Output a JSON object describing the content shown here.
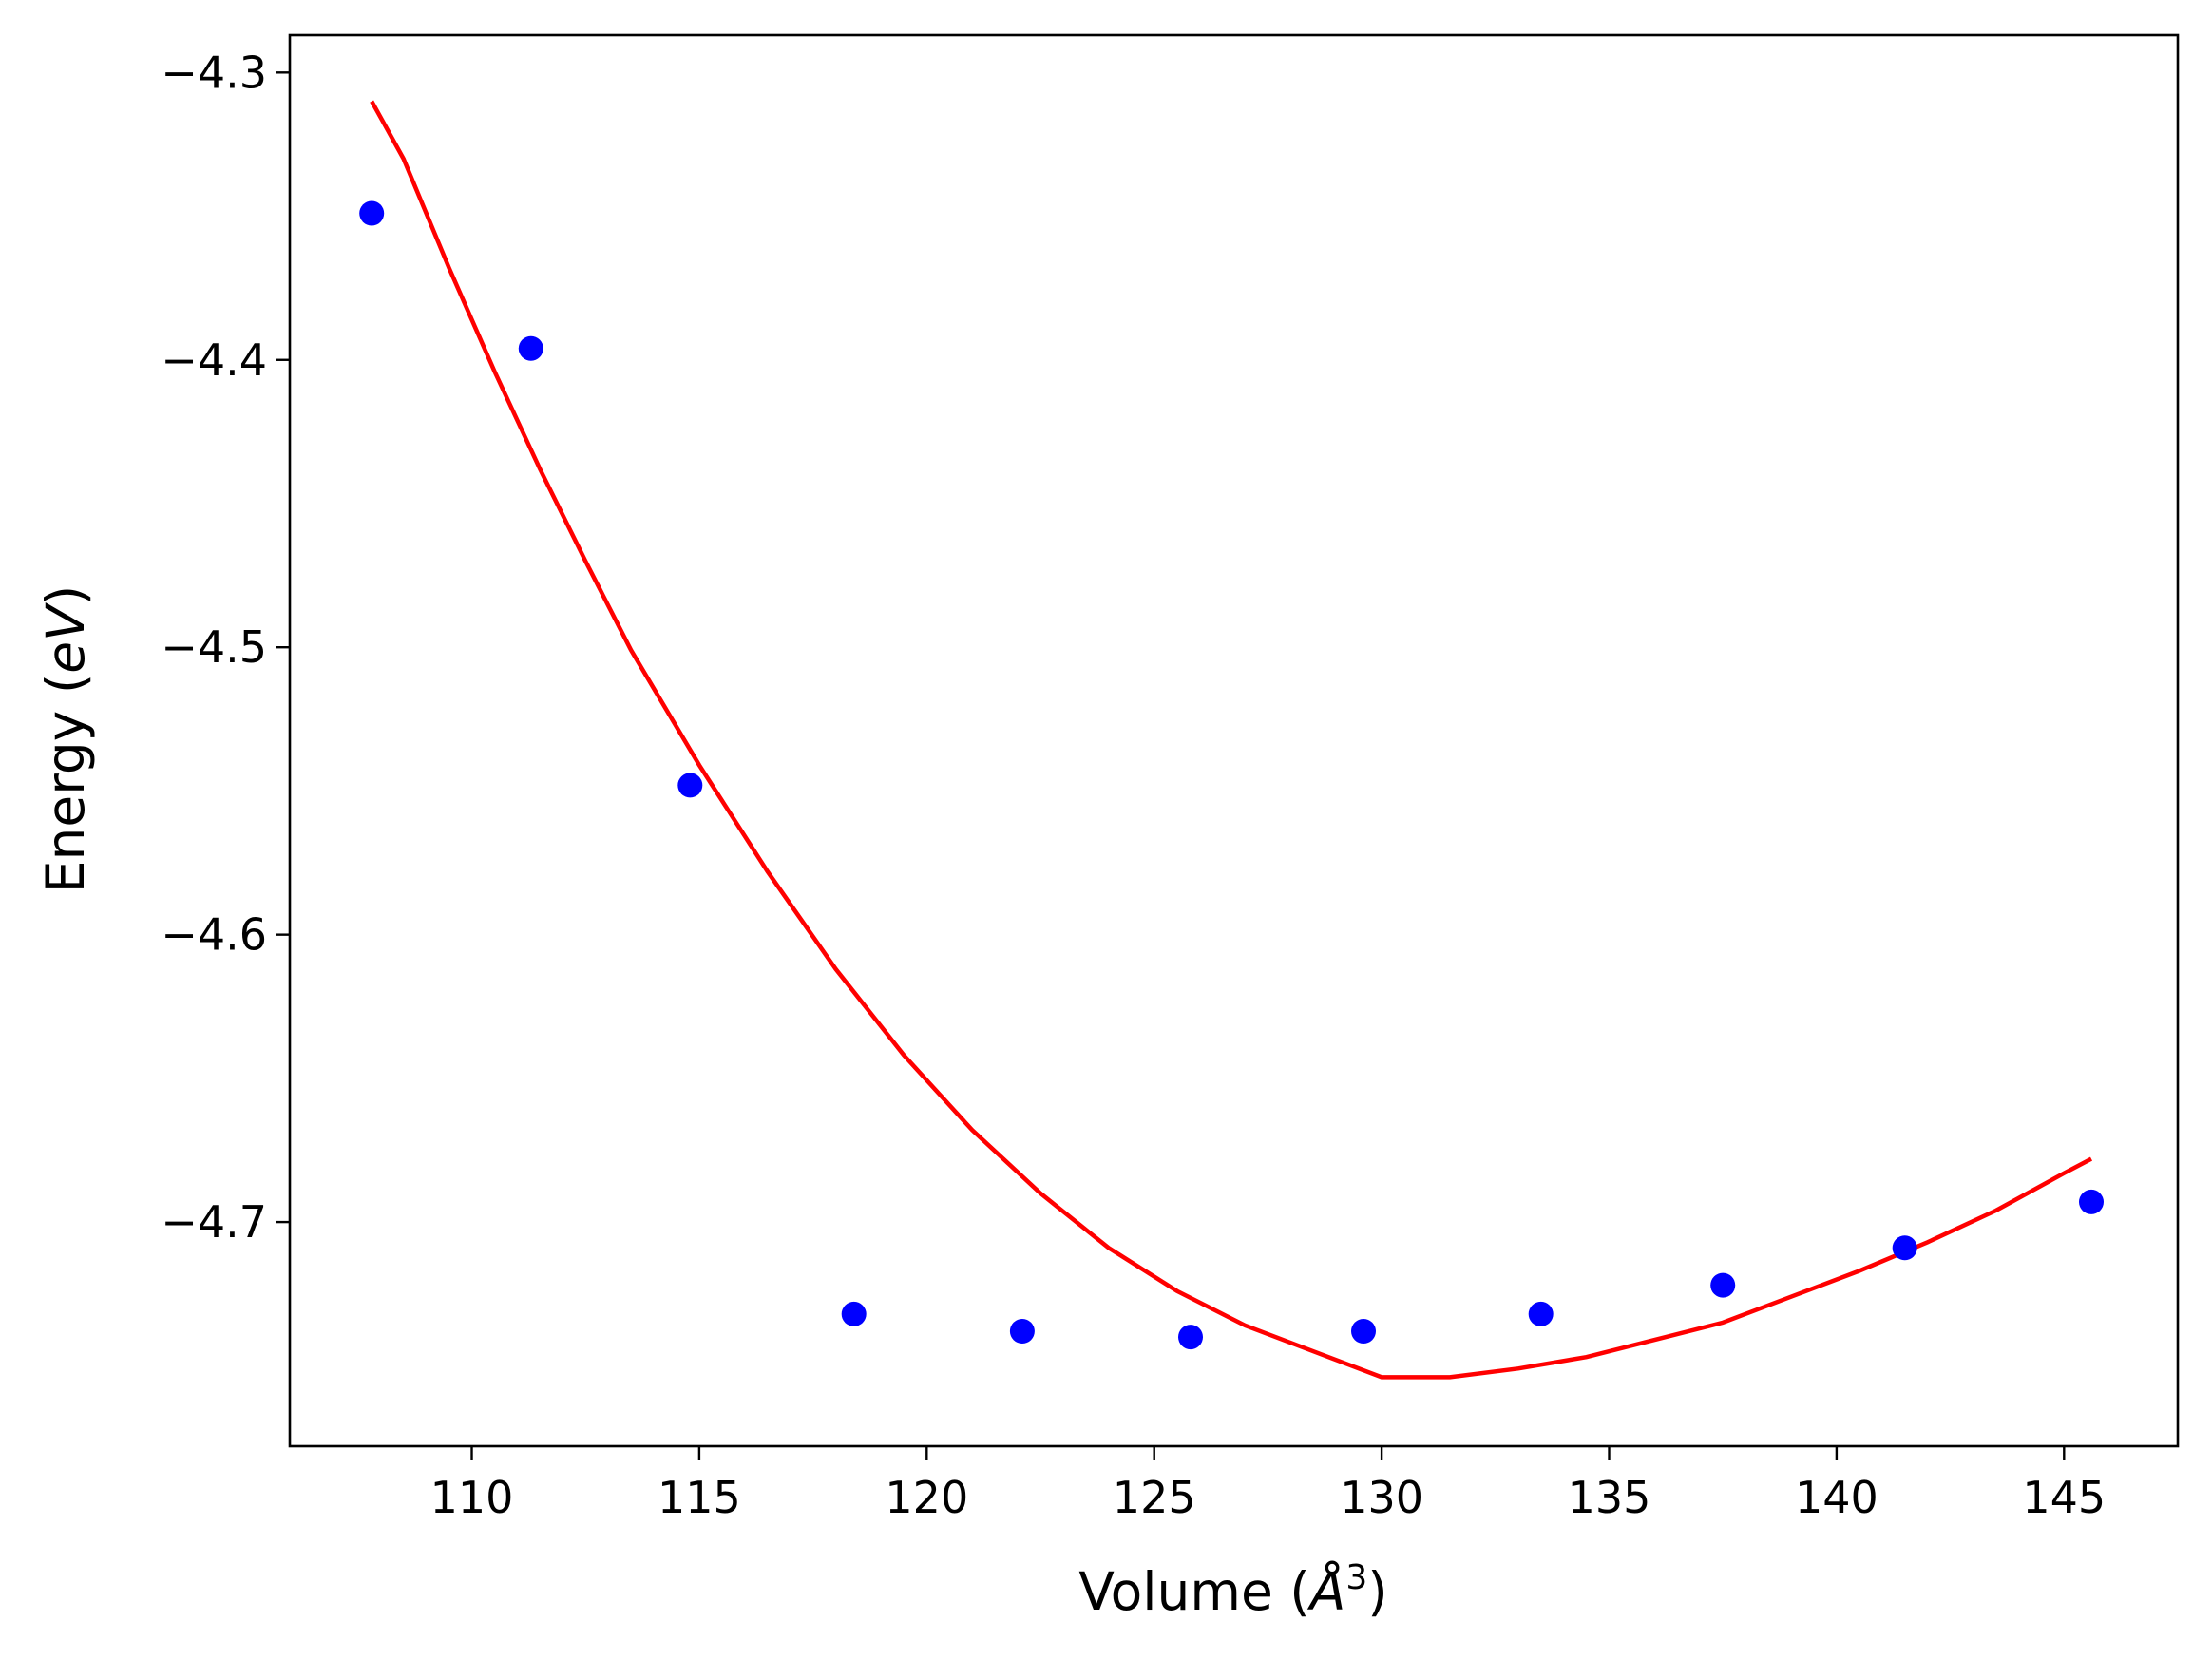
{
  "chart_data": {
    "type": "scatter",
    "title": "",
    "xlabel_main": "Volume (",
    "xlabel_sym": "Å",
    "xlabel_exp": "3",
    "xlabel_end": ")",
    "ylabel_main": "Energy (",
    "ylabel_sym": "eV",
    "ylabel_end": ")",
    "xlim": [
      106,
      147.5
    ],
    "ylim": [
      -4.778,
      -4.287
    ],
    "x_ticks": [
      110,
      115,
      120,
      125,
      130,
      135,
      140,
      145
    ],
    "x_tick_labels": [
      "110",
      "115",
      "120",
      "125",
      "130",
      "135",
      "140",
      "145"
    ],
    "y_ticks": [
      -4.3,
      -4.4,
      -4.5,
      -4.6,
      -4.7
    ],
    "y_tick_labels": [
      "−4.3",
      "−4.4",
      "−4.5",
      "−4.6",
      "−4.7"
    ],
    "grid": false,
    "colors": {
      "points": "#0000ff",
      "fit": "#ff0000",
      "axes": "#000000"
    },
    "series": [
      {
        "kind": "points",
        "x": [
          107.8,
          111.3,
          114.8,
          118.4,
          122.1,
          125.8,
          129.6,
          133.5,
          137.5,
          141.5,
          145.6
        ],
        "y": [
          -4.349,
          -4.396,
          -4.548,
          -4.732,
          -4.738,
          -4.74,
          -4.738,
          -4.732,
          -4.722,
          -4.709,
          -4.693
        ]
      },
      {
        "kind": "fit-curve",
        "x": [
          107.8,
          108.5,
          109.5,
          110.5,
          111.5,
          112.5,
          113.5,
          115,
          116.5,
          118,
          119.5,
          121,
          122.5,
          124,
          125.5,
          127,
          128.5,
          130,
          131.5,
          133,
          134.5,
          136,
          137.5,
          139,
          140.5,
          142,
          143.5,
          145,
          145.6
        ],
        "y": [
          -4.31,
          -4.33,
          -4.368,
          -4.404,
          -4.438,
          -4.47,
          -4.501,
          -4.541,
          -4.578,
          -4.612,
          -4.642,
          -4.668,
          -4.69,
          -4.709,
          -4.724,
          -4.736,
          -4.745,
          -4.754,
          -4.754,
          -4.751,
          -4.747,
          -4.741,
          -4.735,
          -4.726,
          -4.717,
          -4.707,
          -4.696,
          -4.683,
          -4.678
        ]
      }
    ]
  }
}
